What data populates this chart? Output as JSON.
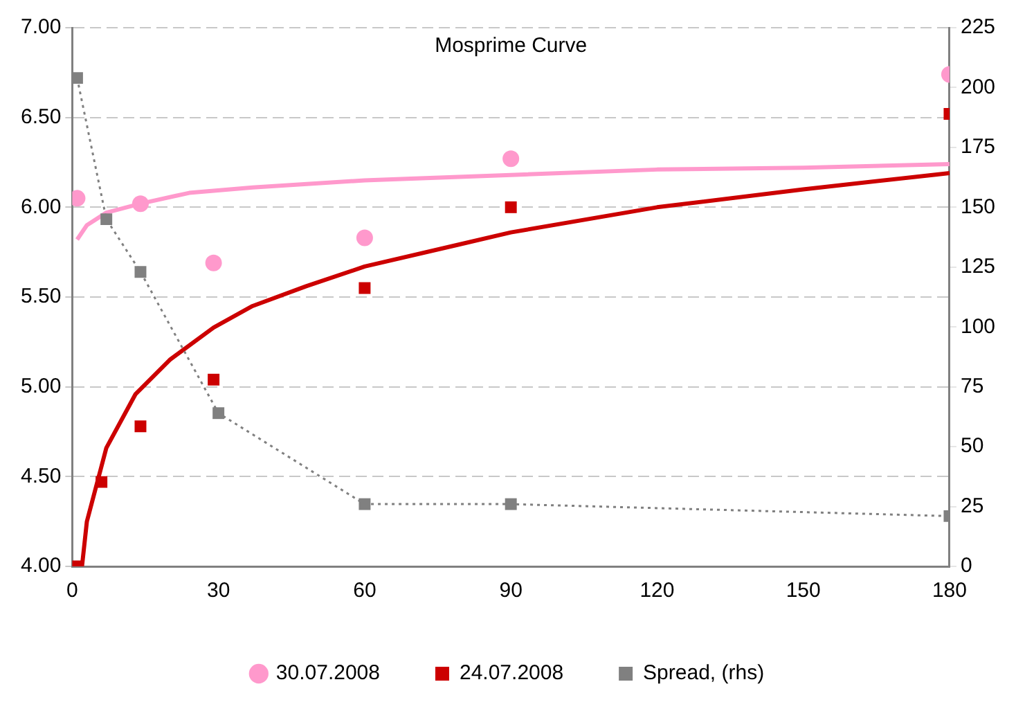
{
  "chart_data": {
    "type": "line",
    "title": "Mosprime Curve",
    "xlim": [
      0,
      180
    ],
    "xticks": [
      0,
      30,
      60,
      90,
      120,
      150,
      180
    ],
    "ylim": [
      4,
      7
    ],
    "yticks": [
      {
        "value": 4,
        "label": "4.00"
      },
      {
        "value": 4.5,
        "label": "4.50"
      },
      {
        "value": 5,
        "label": "5.00"
      },
      {
        "value": 5.5,
        "label": "5.50"
      },
      {
        "value": 6,
        "label": "6.00"
      },
      {
        "value": 6.5,
        "label": "6.50"
      },
      {
        "value": 7,
        "label": "7.00"
      }
    ],
    "y2lim": [
      0,
      225
    ],
    "y2ticks": [
      0,
      25,
      50,
      75,
      100,
      125,
      150,
      175,
      200,
      225
    ],
    "grid": "y",
    "legend": "bottom",
    "series": [
      {
        "name": "30.07.2008",
        "type": "scatter",
        "marker": "circle",
        "color": "#ff99cc",
        "x": [
          1,
          14,
          29,
          60,
          90,
          180
        ],
        "values": [
          6.05,
          6.02,
          5.69,
          5.83,
          6.27,
          6.74
        ]
      },
      {
        "name": "24.07.2008",
        "type": "scatter",
        "marker": "square",
        "color": "#cc0000",
        "x": [
          1,
          6,
          14,
          29,
          60,
          90,
          180
        ],
        "values": [
          4.0,
          4.47,
          4.78,
          5.04,
          5.55,
          6.0,
          6.52
        ]
      },
      {
        "name": "Spread, (rhs)",
        "axis": "y2",
        "marker": "square",
        "line_style": "dotted",
        "color": "#808080",
        "x": [
          1,
          7,
          14,
          30,
          60,
          90,
          180
        ],
        "values": [
          204,
          145,
          123,
          64,
          26,
          26,
          21
        ]
      },
      {
        "marker": "none",
        "line_style": "solid",
        "color": "#ff99cc",
        "x": [
          1,
          3,
          7,
          14,
          24,
          37,
          60,
          90,
          120,
          150,
          180
        ],
        "values": [
          5.82,
          5.9,
          5.97,
          6.02,
          6.08,
          6.11,
          6.15,
          6.18,
          6.21,
          6.22,
          6.24
        ]
      },
      {
        "marker": "none",
        "line_style": "solid",
        "color": "#cc0000",
        "x": [
          1,
          2,
          3,
          7,
          13,
          20,
          29,
          37,
          48,
          60,
          79,
          90,
          120,
          150,
          180
        ],
        "values": [
          4.0,
          4.0,
          4.25,
          4.66,
          4.96,
          5.15,
          5.33,
          5.45,
          5.56,
          5.67,
          5.79,
          5.86,
          6.0,
          6.1,
          6.19
        ]
      }
    ]
  }
}
